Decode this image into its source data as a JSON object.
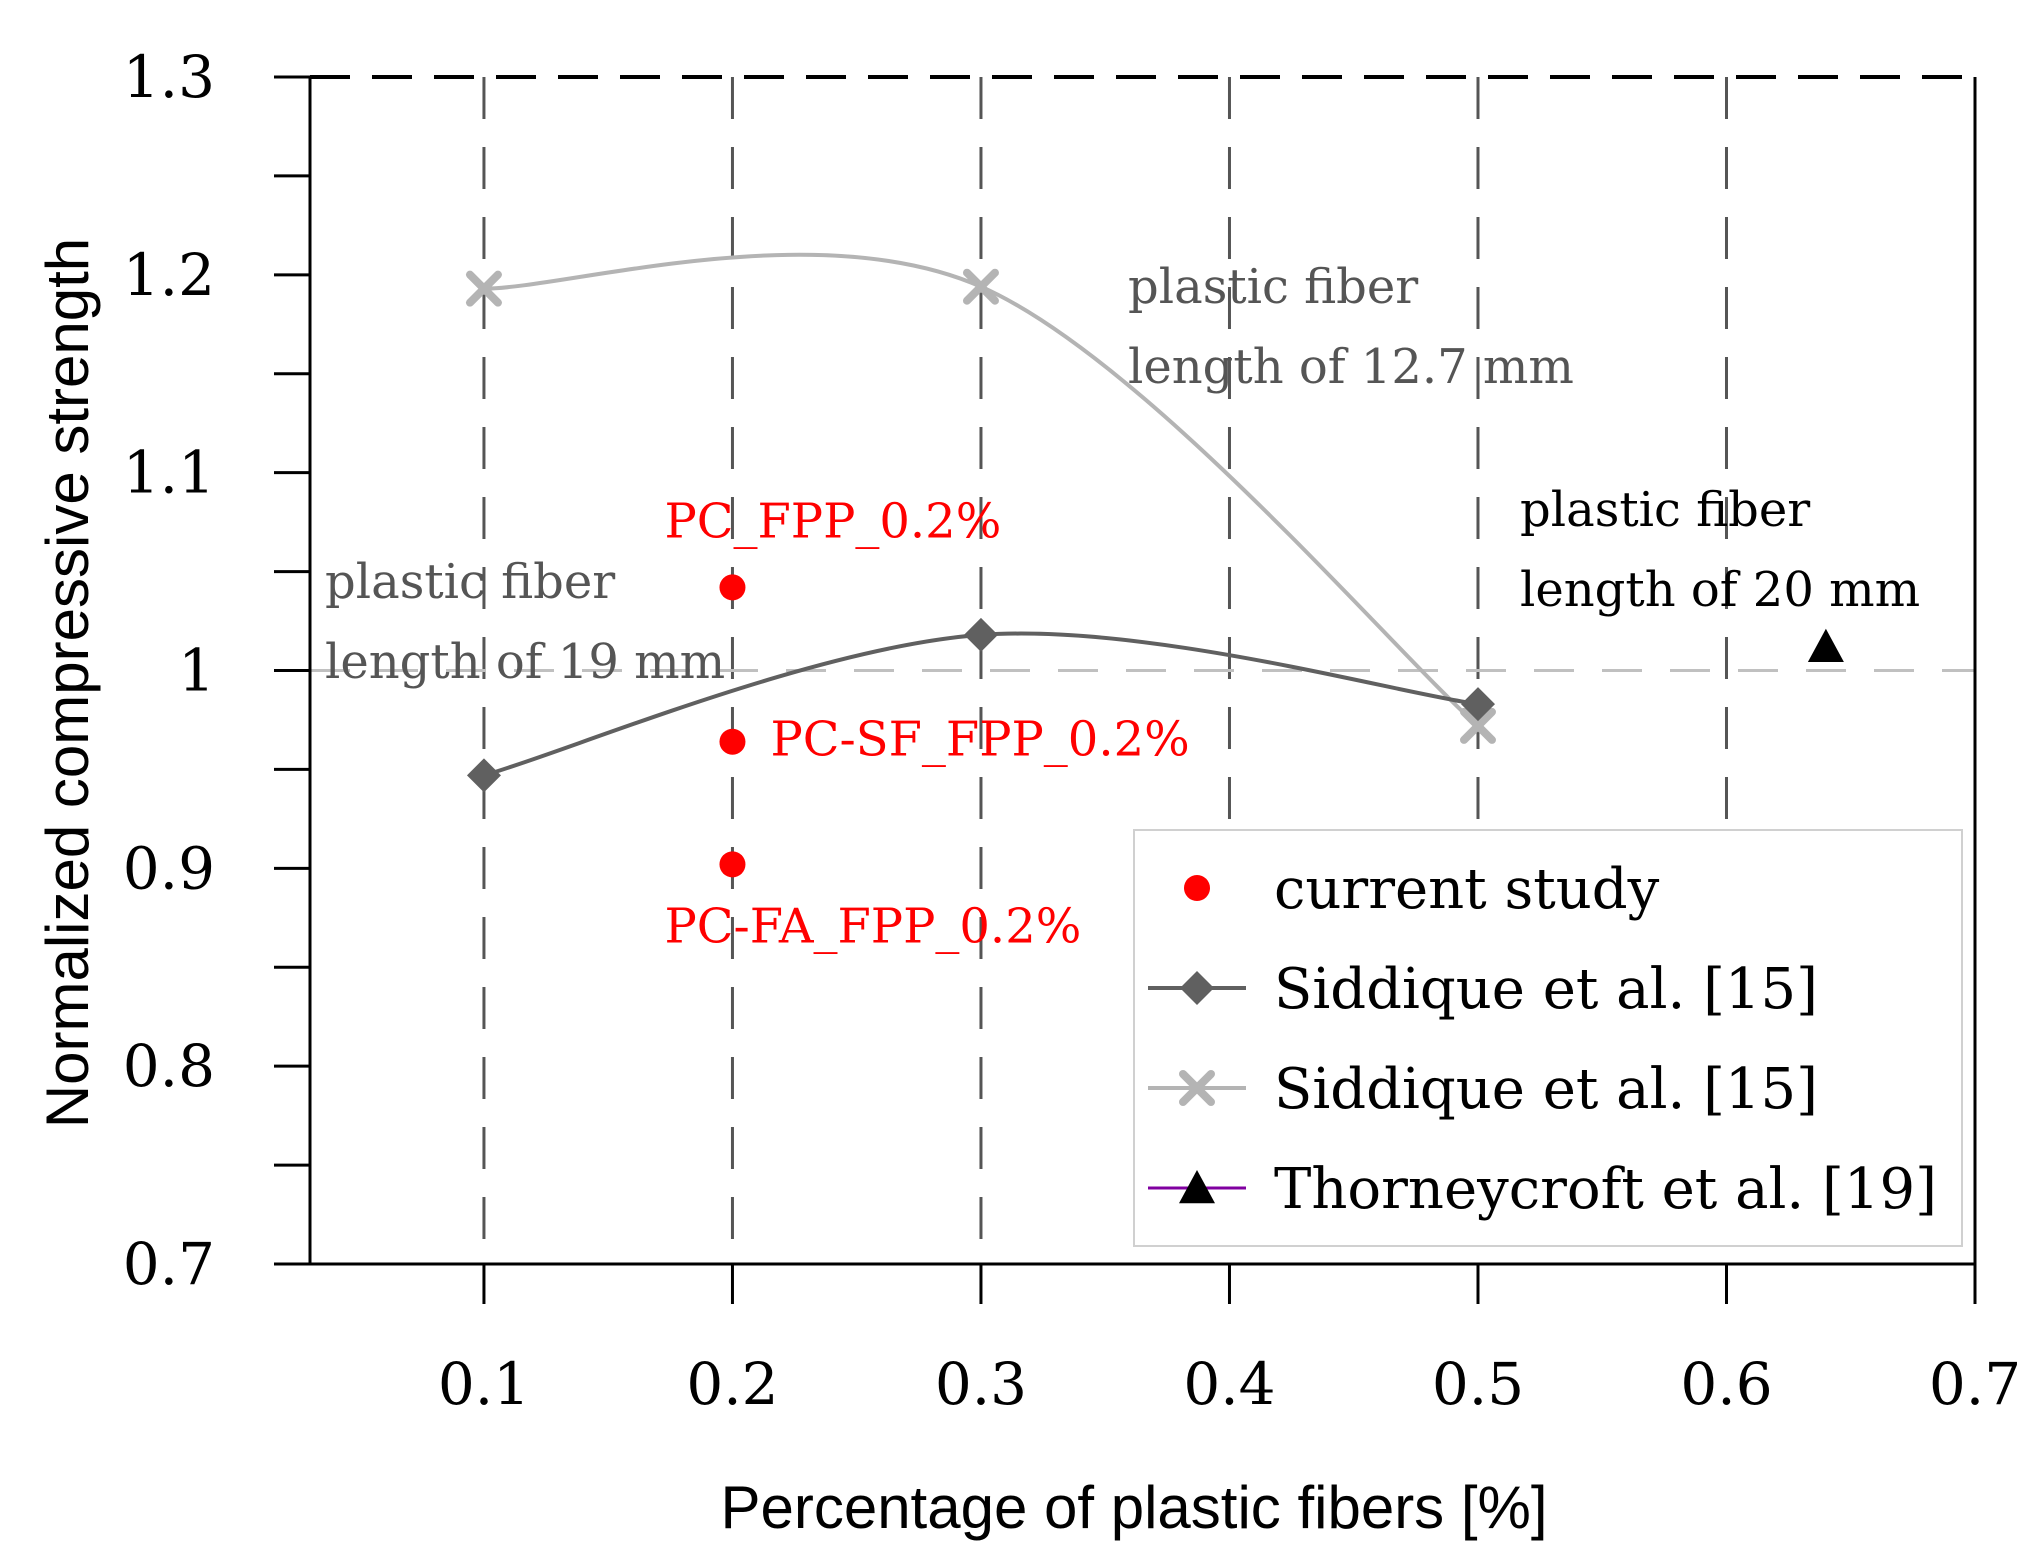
{
  "chart_data": {
    "type": "scatter",
    "title": "",
    "xlabel": "Percentage of plastic fibers [%]",
    "ylabel": "Normalized compressive strength",
    "xlim": [
      0.03,
      0.7
    ],
    "ylim": [
      0.7,
      1.3
    ],
    "x_ticks": [
      "0.1",
      "0.2",
      "0.3",
      "0.4",
      "0.5",
      "0.6",
      "0.7"
    ],
    "y_ticks": [
      "0.7",
      "0.8",
      "0.9",
      "1",
      "1.1",
      "1.2",
      "1.3"
    ],
    "grid": "vertical dashed",
    "reference_line_y": 1.0,
    "legend_position": "bottom-right",
    "series": [
      {
        "name": "current study",
        "marker": "circle",
        "line": false,
        "color": "#ff0000",
        "points": [
          {
            "x": 0.2,
            "y": 1.042,
            "label": "PC_FPP_0.2%"
          },
          {
            "x": 0.2,
            "y": 0.964,
            "label": "PC-SF_FPP_0.2%"
          },
          {
            "x": 0.2,
            "y": 0.902,
            "label": "PC-FA_FPP_0.2%"
          }
        ]
      },
      {
        "name": "Siddique et al. [15]",
        "marker": "diamond",
        "line": true,
        "color": "#606060",
        "points": [
          {
            "x": 0.1,
            "y": 0.947
          },
          {
            "x": 0.3,
            "y": 1.018
          },
          {
            "x": 0.5,
            "y": 0.983
          }
        ]
      },
      {
        "name": "Siddique et al. [15]",
        "marker": "x",
        "line": true,
        "color": "#b4b4b4",
        "points": [
          {
            "x": 0.1,
            "y": 1.193
          },
          {
            "x": 0.3,
            "y": 1.194
          },
          {
            "x": 0.5,
            "y": 0.972
          }
        ]
      },
      {
        "name": "Thorneycroft et al. [19]",
        "marker": "triangle",
        "line": false,
        "color": "#000000",
        "legend_line_color": "#8000a0",
        "points": [
          {
            "x": 0.64,
            "y": 1.012
          }
        ]
      }
    ],
    "annotations": [
      {
        "lines": [
          "plastic fiber",
          "length of 19 mm"
        ],
        "color": "#555555"
      },
      {
        "lines": [
          "plastic fiber",
          "length of 12.7 mm"
        ],
        "color": "#555555"
      },
      {
        "lines": [
          "plastic fiber",
          "length of 20 mm"
        ],
        "color": "#000000"
      }
    ]
  }
}
